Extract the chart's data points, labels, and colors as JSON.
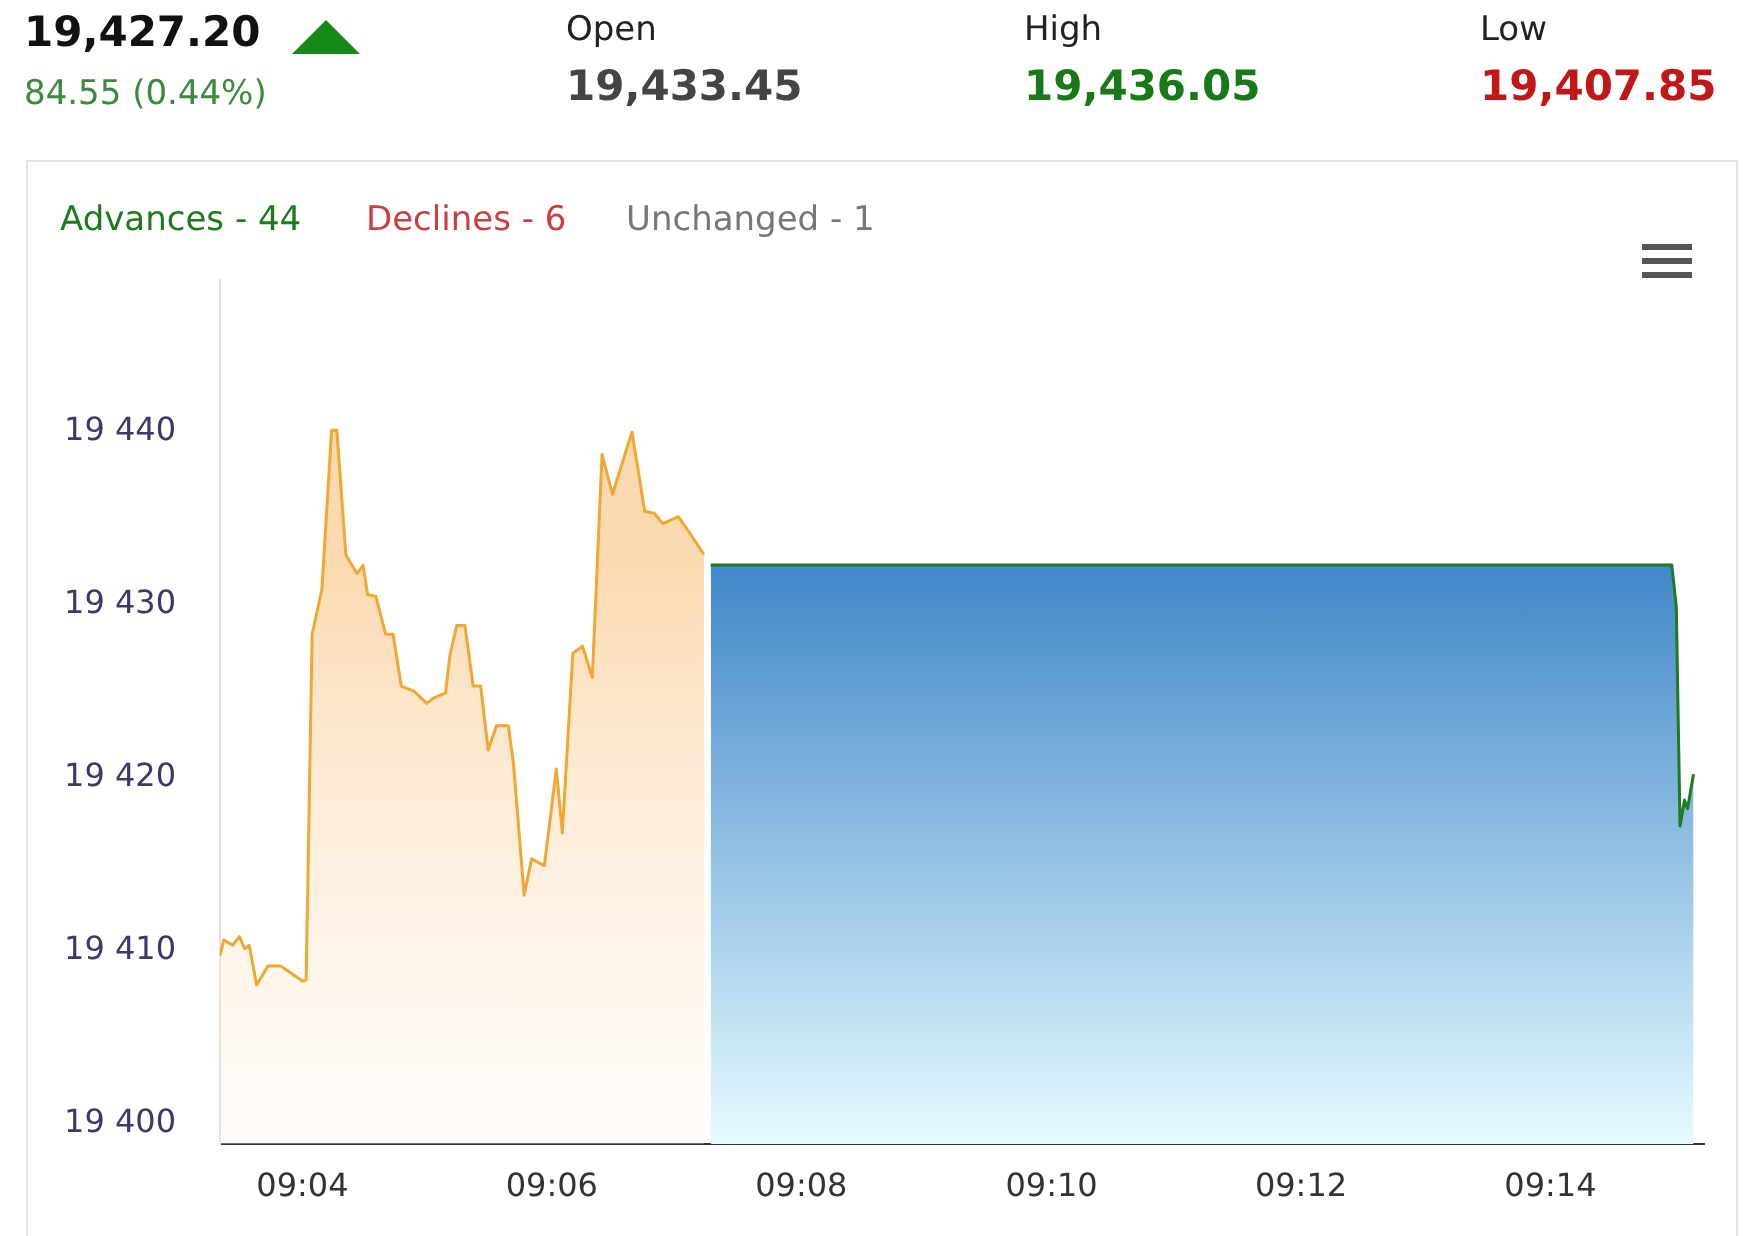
{
  "chart_data": {
    "type": "area",
    "title": "19,427.20",
    "subtitle": "84.55 (0.44%)",
    "annotations": [
      "Open",
      "19,433.45",
      "High",
      "19,436.05",
      "Low",
      "19,407.85",
      "Advances - 44",
      "Declines - 6",
      "Unchanged - 1"
    ],
    "marker": "none",
    "legend": false,
    "xlim": [
      9.0557,
      9.2538
    ],
    "xticks": [
      {
        "value": 9.0667,
        "label": "09:04"
      },
      {
        "value": 9.1,
        "label": "09:06"
      },
      {
        "value": 9.1333,
        "label": "09:08"
      },
      {
        "value": 9.1667,
        "label": "09:10"
      },
      {
        "value": 9.2,
        "label": "09:12"
      },
      {
        "value": 9.2333,
        "label": "09:14"
      }
    ],
    "ylim": [
      19398.8,
      19448.8
    ],
    "yticks": [
      {
        "value": 19400,
        "label": "19 400"
      },
      {
        "value": 19410,
        "label": "19 410"
      },
      {
        "value": 19420,
        "label": "19 420"
      },
      {
        "value": 19430,
        "label": "19 430"
      },
      {
        "value": 19440,
        "label": "19 440"
      }
    ],
    "series": [
      {
        "color": "#f0a830",
        "x": [
          9.0557,
          9.0562,
          9.0574,
          9.0583,
          9.059,
          9.0596,
          9.0606,
          9.0621,
          9.0638,
          9.0668,
          9.0672,
          9.068,
          9.0693,
          9.0706,
          9.0713,
          9.0725,
          9.074,
          9.0748,
          9.0754,
          9.0765,
          9.0778,
          9.0788,
          9.0799,
          9.0816,
          9.0833,
          9.0842,
          9.0858,
          9.0864,
          9.0873,
          9.0884,
          9.0895,
          9.0905,
          9.0915,
          9.0926,
          9.0942,
          9.0949,
          9.0963,
          9.0973,
          9.099,
          9.1006,
          9.1014,
          9.1028,
          9.1041,
          9.1054,
          9.1067,
          9.1081,
          9.1107,
          9.1124,
          9.1137,
          9.1148,
          9.1169,
          9.1185,
          9.1203
        ],
        "values": [
          19409.7,
          19410.6,
          19410.3,
          19410.8,
          19410.1,
          19410.3,
          19408.0,
          19409.1,
          19409.1,
          19408.2,
          19408.3,
          19428.3,
          19430.9,
          19440.1,
          19440.1,
          19432.9,
          19431.8,
          19432.3,
          19430.6,
          19430.5,
          19428.3,
          19428.3,
          19425.3,
          19425.0,
          19424.3,
          19424.6,
          19424.9,
          19427.1,
          19428.8,
          19428.8,
          19425.3,
          19425.3,
          19421.6,
          19423.0,
          19423.0,
          19420.7,
          19413.2,
          19415.3,
          19414.9,
          19420.5,
          19416.8,
          19427.2,
          19427.6,
          19425.8,
          19438.7,
          19436.4,
          19440.0,
          19435.4,
          19435.3,
          19434.7,
          19435.1,
          19434.1,
          19432.9
        ]
      },
      {
        "color": "#1e7b1e",
        "x": [
          9.1212,
          9.2495,
          9.2501,
          9.2506,
          9.2512,
          9.2516,
          9.2524
        ],
        "values": [
          19432.3,
          19432.3,
          19429.9,
          19417.2,
          19418.7,
          19418.2,
          19420.2
        ]
      }
    ]
  }
}
